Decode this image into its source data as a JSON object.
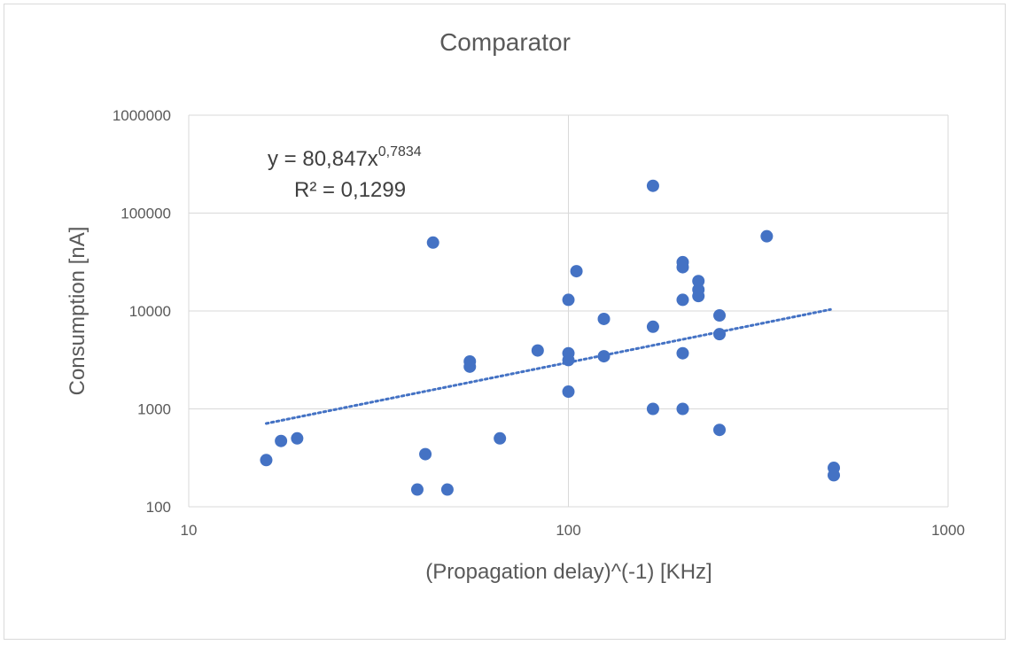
{
  "chart_data": {
    "type": "scatter",
    "title": "Comparator",
    "xlabel": "(Propagation delay)^(-1) [KHz]",
    "ylabel": "Consumption [nA]",
    "x_scale": "log",
    "y_scale": "log",
    "xlim": [
      10,
      1000
    ],
    "ylim": [
      100,
      1000000
    ],
    "x_ticks": [
      10,
      100,
      1000
    ],
    "x_tick_labels": [
      "10",
      "100",
      "1000"
    ],
    "y_ticks": [
      100,
      1000,
      10000,
      100000,
      1000000
    ],
    "y_tick_labels": [
      "100",
      "1000",
      "10000",
      "100000",
      "1000000"
    ],
    "grid": true,
    "legend": "none",
    "marker_color": "#4472C4",
    "series": [
      {
        "points": [
          {
            "x": 16,
            "y": 300
          },
          {
            "x": 17.5,
            "y": 470
          },
          {
            "x": 19.3,
            "y": 500
          },
          {
            "x": 40,
            "y": 150
          },
          {
            "x": 42,
            "y": 345
          },
          {
            "x": 44,
            "y": 50000
          },
          {
            "x": 48,
            "y": 150
          },
          {
            "x": 55,
            "y": 3050
          },
          {
            "x": 55,
            "y": 2700
          },
          {
            "x": 66,
            "y": 500
          },
          {
            "x": 83,
            "y": 3950
          },
          {
            "x": 100,
            "y": 13000
          },
          {
            "x": 100,
            "y": 3700
          },
          {
            "x": 100,
            "y": 3150
          },
          {
            "x": 100,
            "y": 1500
          },
          {
            "x": 105,
            "y": 25500
          },
          {
            "x": 124,
            "y": 8300
          },
          {
            "x": 124,
            "y": 3450
          },
          {
            "x": 167,
            "y": 190000
          },
          {
            "x": 167,
            "y": 6900
          },
          {
            "x": 167,
            "y": 1000
          },
          {
            "x": 200,
            "y": 31500
          },
          {
            "x": 200,
            "y": 28000
          },
          {
            "x": 200,
            "y": 13000
          },
          {
            "x": 200,
            "y": 3700
          },
          {
            "x": 200,
            "y": 1000
          },
          {
            "x": 220,
            "y": 20200
          },
          {
            "x": 220,
            "y": 16500
          },
          {
            "x": 220,
            "y": 14200
          },
          {
            "x": 250,
            "y": 9000
          },
          {
            "x": 250,
            "y": 5800
          },
          {
            "x": 250,
            "y": 610
          },
          {
            "x": 333,
            "y": 58000
          },
          {
            "x": 500,
            "y": 250
          },
          {
            "x": 500,
            "y": 210
          }
        ]
      }
    ],
    "trendline": {
      "type": "power",
      "a": 80.847,
      "b": 0.7834,
      "x_range": [
        16,
        490
      ],
      "color": "#4472C4",
      "style": "dotted"
    },
    "annotations": {
      "equation_prefix": "y = 80,847x",
      "equation_exponent": "0,7834",
      "r_squared": "R² = 0,1299"
    }
  }
}
